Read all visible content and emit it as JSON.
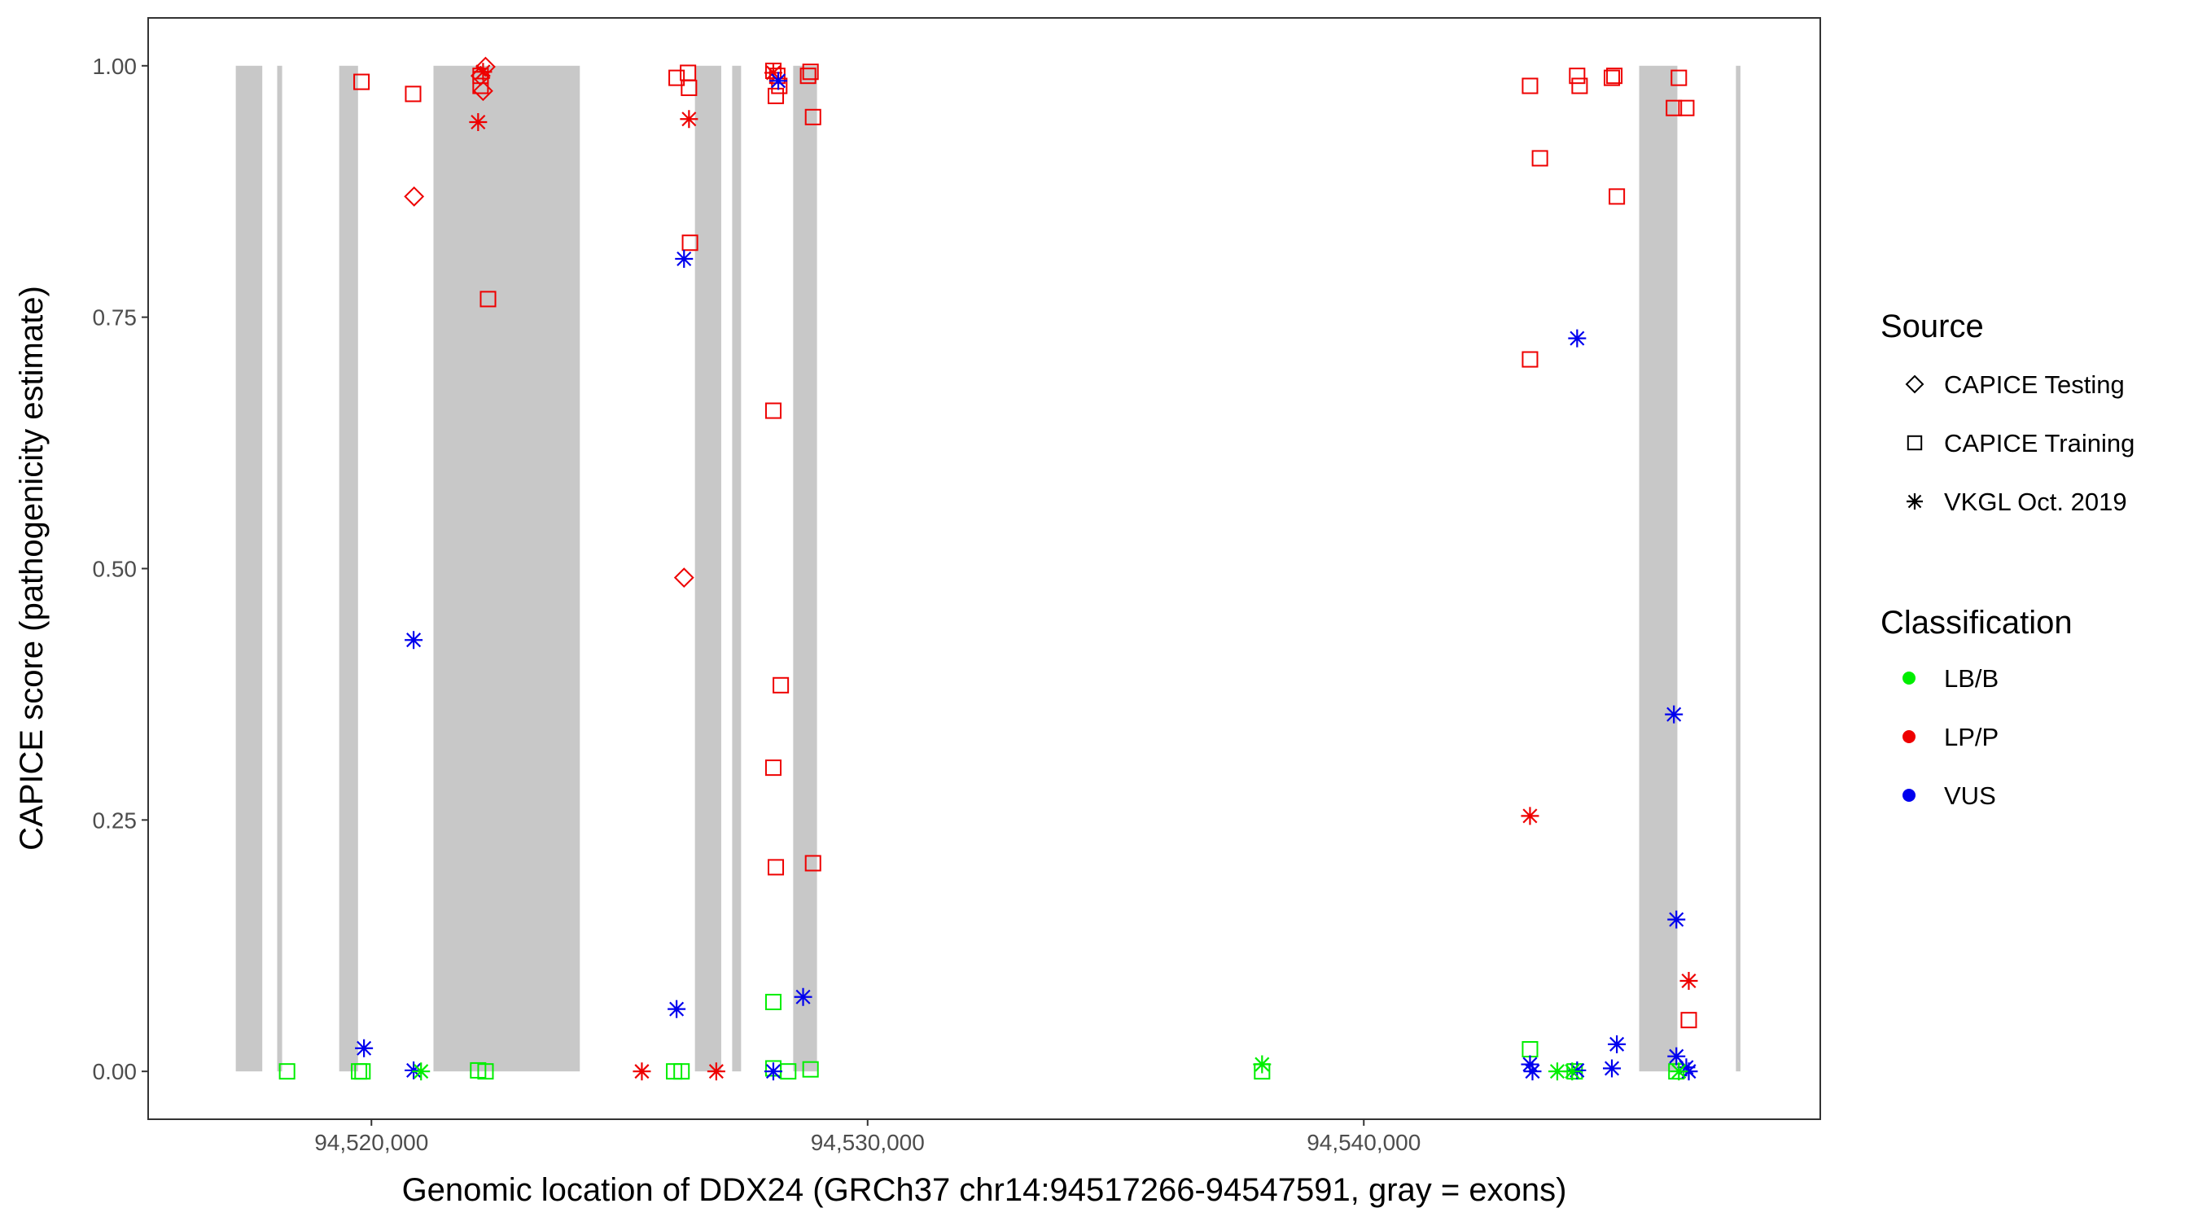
{
  "chart_data": {
    "type": "scatter",
    "xlabel": "Genomic location of DDX24 (GRCh37 chr14:94517266-94547591, gray = exons)",
    "ylabel": "CAPICE score (pathogenicity estimate)",
    "xlim": [
      94515500,
      94549200
    ],
    "ylim": [
      -0.0476,
      1.0476
    ],
    "x_ticks": [
      94520000,
      94530000,
      94540000
    ],
    "x_tick_labels": [
      "94,520,000",
      "94,530,000",
      "94,540,000"
    ],
    "y_ticks": [
      0,
      0.25,
      0.5,
      0.75,
      1
    ],
    "y_tick_labels": [
      "0.00",
      "0.25",
      "0.50",
      "0.75",
      "1.00"
    ],
    "grid": false,
    "legend_position": "right",
    "exon_regions_note": "gray = exons",
    "exons": [
      [
        94517266,
        94517800
      ],
      [
        94518100,
        94518200
      ],
      [
        94519350,
        94519730
      ],
      [
        94521250,
        94524200
      ],
      [
        94526520,
        94527050
      ],
      [
        94527270,
        94527450
      ],
      [
        94528500,
        94528980
      ],
      [
        94545550,
        94546320
      ],
      [
        94547500,
        94547591
      ]
    ],
    "legend_source": {
      "title": "Source",
      "items": [
        {
          "label": "CAPICE Testing",
          "shape": "diamond"
        },
        {
          "label": "CAPICE Training",
          "shape": "square"
        },
        {
          "label": "VKGL Oct. 2019",
          "shape": "asterisk"
        }
      ]
    },
    "legend_classification": {
      "title": "Classification",
      "items": [
        {
          "label": "LB/B",
          "color": "#00ee00"
        },
        {
          "label": "LP/P",
          "color": "#ee0000"
        },
        {
          "label": "VUS",
          "color": "#0000ee"
        }
      ]
    },
    "colors": {
      "LB/B": "#00ee00",
      "LP/P": "#ee0000",
      "VUS": "#0000ee"
    },
    "series": [
      {
        "name": "CAPICE Testing",
        "shape": "diamond",
        "points": [
          {
            "x": 94520860,
            "y": 0.87,
            "c": "LP/P"
          },
          {
            "x": 94522250,
            "y": 0.975,
            "c": "LP/P"
          },
          {
            "x": 94522300,
            "y": 0.999,
            "c": "LP/P"
          },
          {
            "x": 94522200,
            "y": 0.99,
            "c": "LP/P"
          },
          {
            "x": 94526300,
            "y": 0.491,
            "c": "LP/P"
          }
        ]
      },
      {
        "name": "CAPICE Training",
        "shape": "square",
        "points": [
          {
            "x": 94519800,
            "y": 0.984,
            "c": "LP/P"
          },
          {
            "x": 94520840,
            "y": 0.972,
            "c": "LP/P"
          },
          {
            "x": 94522200,
            "y": 0.99,
            "c": "LP/P"
          },
          {
            "x": 94522200,
            "y": 0.98,
            "c": "LP/P"
          },
          {
            "x": 94522350,
            "y": 0.768,
            "c": "LP/P"
          },
          {
            "x": 94526150,
            "y": 0.988,
            "c": "LP/P"
          },
          {
            "x": 94526380,
            "y": 0.993,
            "c": "LP/P"
          },
          {
            "x": 94526400,
            "y": 0.978,
            "c": "LP/P"
          },
          {
            "x": 94526420,
            "y": 0.824,
            "c": "LP/P"
          },
          {
            "x": 94528100,
            "y": 0.995,
            "c": "LP/P"
          },
          {
            "x": 94528180,
            "y": 0.99,
            "c": "LP/P"
          },
          {
            "x": 94528150,
            "y": 0.97,
            "c": "LP/P"
          },
          {
            "x": 94528220,
            "y": 0.98,
            "c": "LP/P"
          },
          {
            "x": 94528800,
            "y": 0.99,
            "c": "LP/P"
          },
          {
            "x": 94528850,
            "y": 0.994,
            "c": "LP/P"
          },
          {
            "x": 94528900,
            "y": 0.949,
            "c": "LP/P"
          },
          {
            "x": 94528100,
            "y": 0.657,
            "c": "LP/P"
          },
          {
            "x": 94528250,
            "y": 0.384,
            "c": "LP/P"
          },
          {
            "x": 94528100,
            "y": 0.302,
            "c": "LP/P"
          },
          {
            "x": 94528150,
            "y": 0.203,
            "c": "LP/P"
          },
          {
            "x": 94528900,
            "y": 0.207,
            "c": "LP/P"
          },
          {
            "x": 94543350,
            "y": 0.98,
            "c": "LP/P"
          },
          {
            "x": 94543550,
            "y": 0.908,
            "c": "LP/P"
          },
          {
            "x": 94544300,
            "y": 0.99,
            "c": "LP/P"
          },
          {
            "x": 94544350,
            "y": 0.98,
            "c": "LP/P"
          },
          {
            "x": 94545050,
            "y": 0.99,
            "c": "LP/P"
          },
          {
            "x": 94545000,
            "y": 0.988,
            "c": "LP/P"
          },
          {
            "x": 94545100,
            "y": 0.87,
            "c": "LP/P"
          },
          {
            "x": 94546350,
            "y": 0.988,
            "c": "LP/P"
          },
          {
            "x": 94546250,
            "y": 0.958,
            "c": "LP/P"
          },
          {
            "x": 94546500,
            "y": 0.958,
            "c": "LP/P"
          },
          {
            "x": 94543350,
            "y": 0.708,
            "c": "LP/P"
          },
          {
            "x": 94546550,
            "y": 0.051,
            "c": "LP/P"
          },
          {
            "x": 94518300,
            "y": 0.0,
            "c": "LB/B"
          },
          {
            "x": 94519750,
            "y": 0.0,
            "c": "LB/B"
          },
          {
            "x": 94519820,
            "y": 0.0,
            "c": "LB/B"
          },
          {
            "x": 94522150,
            "y": 0.001,
            "c": "LB/B"
          },
          {
            "x": 94522300,
            "y": 0.0,
            "c": "LB/B"
          },
          {
            "x": 94526100,
            "y": 0.0,
            "c": "LB/B"
          },
          {
            "x": 94526250,
            "y": 0.0,
            "c": "LB/B"
          },
          {
            "x": 94528100,
            "y": 0.069,
            "c": "LB/B"
          },
          {
            "x": 94528100,
            "y": 0.003,
            "c": "LB/B"
          },
          {
            "x": 94528400,
            "y": 0.0,
            "c": "LB/B"
          },
          {
            "x": 94528850,
            "y": 0.002,
            "c": "LB/B"
          },
          {
            "x": 94537950,
            "y": 0.0,
            "c": "LB/B"
          },
          {
            "x": 94543350,
            "y": 0.022,
            "c": "LB/B"
          },
          {
            "x": 94544250,
            "y": 0.0,
            "c": "LB/B"
          },
          {
            "x": 94546300,
            "y": 0.0,
            "c": "LB/B"
          }
        ]
      },
      {
        "name": "VKGL Oct. 2019",
        "shape": "asterisk",
        "points": [
          {
            "x": 94522150,
            "y": 0.944,
            "c": "LP/P"
          },
          {
            "x": 94522250,
            "y": 0.994,
            "c": "LP/P"
          },
          {
            "x": 94526400,
            "y": 0.947,
            "c": "LP/P"
          },
          {
            "x": 94525450,
            "y": 0.0,
            "c": "LP/P"
          },
          {
            "x": 94526950,
            "y": 0.0,
            "c": "LP/P"
          },
          {
            "x": 94528100,
            "y": 0.993,
            "c": "LP/P"
          },
          {
            "x": 94543350,
            "y": 0.254,
            "c": "LP/P"
          },
          {
            "x": 94546550,
            "y": 0.09,
            "c": "LP/P"
          },
          {
            "x": 94520850,
            "y": 0.429,
            "c": "VUS"
          },
          {
            "x": 94519850,
            "y": 0.023,
            "c": "VUS"
          },
          {
            "x": 94520850,
            "y": 0.001,
            "c": "VUS"
          },
          {
            "x": 94526300,
            "y": 0.808,
            "c": "VUS"
          },
          {
            "x": 94526150,
            "y": 0.062,
            "c": "VUS"
          },
          {
            "x": 94528200,
            "y": 0.985,
            "c": "VUS"
          },
          {
            "x": 94528700,
            "y": 0.074,
            "c": "VUS"
          },
          {
            "x": 94528100,
            "y": 0.0,
            "c": "VUS"
          },
          {
            "x": 94544300,
            "y": 0.729,
            "c": "VUS"
          },
          {
            "x": 94546250,
            "y": 0.355,
            "c": "VUS"
          },
          {
            "x": 94546300,
            "y": 0.151,
            "c": "VUS"
          },
          {
            "x": 94545100,
            "y": 0.027,
            "c": "VUS"
          },
          {
            "x": 94546300,
            "y": 0.015,
            "c": "VUS"
          },
          {
            "x": 94543350,
            "y": 0.007,
            "c": "VUS"
          },
          {
            "x": 94543400,
            "y": 0.0,
            "c": "VUS"
          },
          {
            "x": 94544300,
            "y": 0.001,
            "c": "VUS"
          },
          {
            "x": 94545000,
            "y": 0.003,
            "c": "VUS"
          },
          {
            "x": 94546500,
            "y": 0.004,
            "c": "VUS"
          },
          {
            "x": 94546550,
            "y": 0.0,
            "c": "VUS"
          },
          {
            "x": 94521000,
            "y": 0.0,
            "c": "LB/B"
          },
          {
            "x": 94537950,
            "y": 0.007,
            "c": "LB/B"
          },
          {
            "x": 94543900,
            "y": 0.0,
            "c": "LB/B"
          },
          {
            "x": 94544200,
            "y": 0.0,
            "c": "LB/B"
          },
          {
            "x": 94546350,
            "y": 0.0,
            "c": "LB/B"
          }
        ]
      }
    ]
  }
}
